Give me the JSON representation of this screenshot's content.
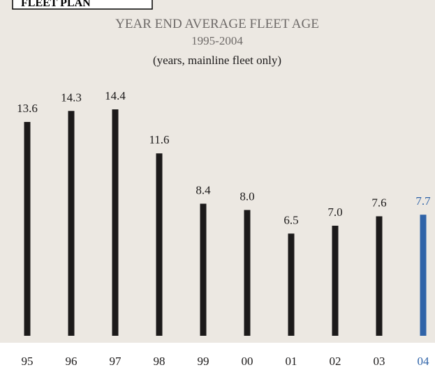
{
  "section_label": "FLEET PLAN",
  "chart_data": {
    "type": "bar",
    "title": "YEAR END AVERAGE FLEET AGE",
    "subtitle": "1995-2004",
    "annotation": "(years, mainline fleet only)",
    "categories": [
      "95",
      "96",
      "97",
      "98",
      "99",
      "00",
      "01",
      "02",
      "03",
      "04"
    ],
    "values": [
      13.6,
      14.3,
      14.4,
      11.6,
      8.4,
      8.0,
      6.5,
      7.0,
      7.6,
      7.7
    ],
    "value_labels": [
      "13.6",
      "14.3",
      "14.4",
      "11.6",
      "8.4",
      "8.0",
      "6.5",
      "7.0",
      "7.6",
      "7.7"
    ],
    "colors": [
      "#1c1a1a",
      "#1c1a1a",
      "#1c1a1a",
      "#1c1a1a",
      "#1c1a1a",
      "#1c1a1a",
      "#1c1a1a",
      "#1c1a1a",
      "#1c1a1a",
      "#2f63a8"
    ]
  }
}
